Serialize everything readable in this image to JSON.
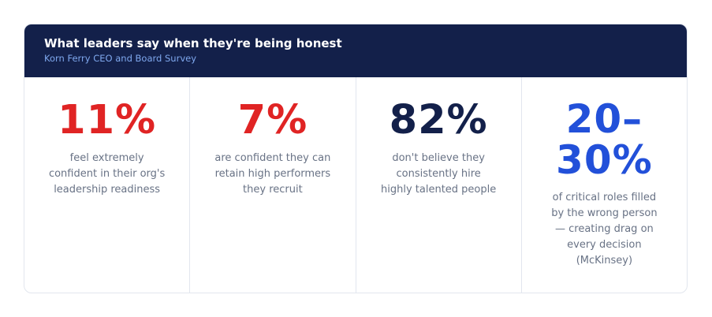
{
  "header": {
    "title": "What leaders say when they're being honest",
    "subtitle": "Korn Ferry CEO and Board Survey"
  },
  "stats": [
    {
      "value": "11%",
      "description": "feel extremely confident in their org's leadership readiness",
      "color": "#e02424"
    },
    {
      "value": "7%",
      "description": "are confident they can retain high performers they recruit",
      "color": "#e02424"
    },
    {
      "value": "82%",
      "description": "don't believe they consistently hire highly talented people",
      "color": "#13204a"
    },
    {
      "value": "20–\n30%",
      "description": "of critical roles filled by the wrong person — creating drag on every decision (McKinsey)",
      "color": "#2250d9"
    }
  ],
  "colors": {
    "header_background": "#13204a",
    "header_title": "#ffffff",
    "header_subtitle": "#7fa8ee",
    "description_text": "#687285",
    "border": "#e2e6ee"
  }
}
